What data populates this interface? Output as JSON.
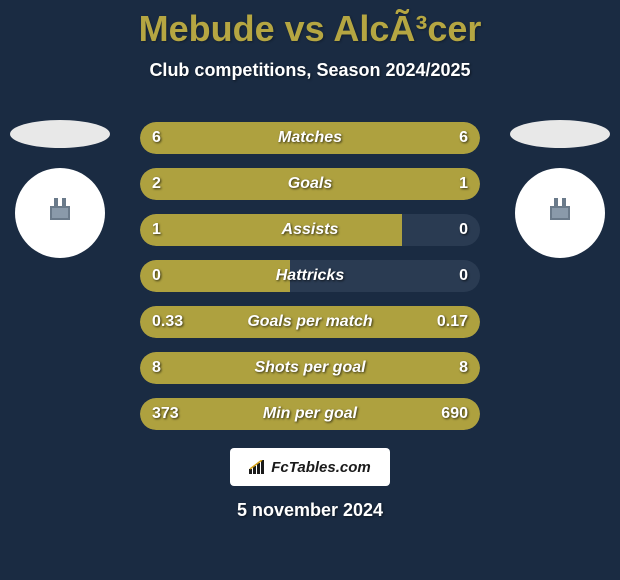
{
  "header": {
    "title": "Mebude vs AlcÃ³cer",
    "subtitle": "Club competitions, Season 2024/2025"
  },
  "colors": {
    "background": "#1a2b42",
    "stat_bar_bg": "#2a3b52",
    "stat_bar_fill": "#aea13f",
    "title_color": "#b5a642",
    "text_color": "#ffffff"
  },
  "stats": [
    {
      "label": "Matches",
      "left_value": "6",
      "right_value": "6",
      "left_pct": 50,
      "right_pct": 50,
      "full": true
    },
    {
      "label": "Goals",
      "left_value": "2",
      "right_value": "1",
      "left_pct": 67,
      "right_pct": 33,
      "full": true
    },
    {
      "label": "Assists",
      "left_value": "1",
      "right_value": "0",
      "left_pct": 77,
      "right_pct": 0,
      "full": false
    },
    {
      "label": "Hattricks",
      "left_value": "0",
      "right_value": "0",
      "left_pct": 44,
      "right_pct": 0,
      "full": false
    },
    {
      "label": "Goals per match",
      "left_value": "0.33",
      "right_value": "0.17",
      "left_pct": 66,
      "right_pct": 34,
      "full": true
    },
    {
      "label": "Shots per goal",
      "left_value": "8",
      "right_value": "8",
      "left_pct": 50,
      "right_pct": 50,
      "full": true
    },
    {
      "label": "Min per goal",
      "left_value": "373",
      "right_value": "690",
      "left_pct": 32,
      "right_pct": 68,
      "full": true
    }
  ],
  "branding": {
    "text": "FcTables.com"
  },
  "footer": {
    "date": "5 november 2024"
  }
}
